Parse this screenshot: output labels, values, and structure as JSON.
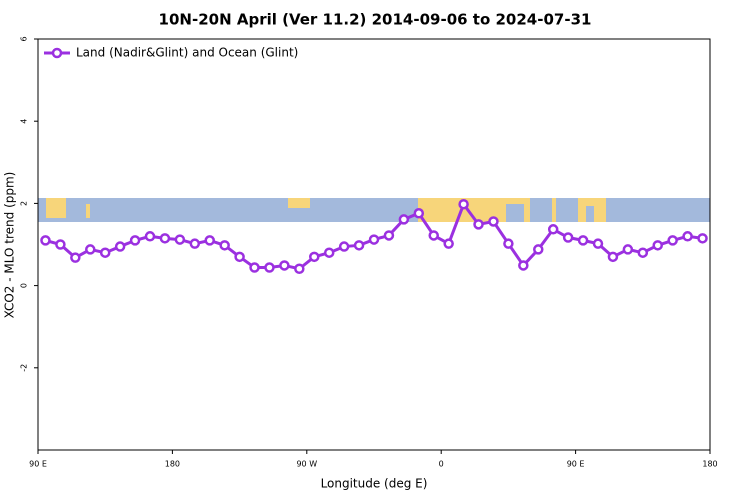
{
  "chart_data": {
    "type": "line",
    "title": "10N-20N April (Ver 11.2)   2014-09-06 to 2024-07-31",
    "x_label": "Longitude (deg E)",
    "y_label": "XCO2 - MLO trend (ppm)",
    "xlim": [
      90,
      540
    ],
    "xticks": [
      {
        "value": 90,
        "label": "90 E"
      },
      180,
      {
        "value": 270,
        "label": "90 W"
      },
      {
        "value": 360,
        "label": "0"
      },
      {
        "value": 450,
        "label": "90 E"
      },
      {
        "value": 540,
        "label": "180"
      }
    ],
    "ylim": [
      -4,
      6
    ],
    "yticks": [
      -2,
      0,
      2,
      4,
      6
    ],
    "legend": "top-left",
    "x": [
      95,
      105,
      115,
      125,
      135,
      145,
      155,
      165,
      175,
      185,
      195,
      205,
      215,
      225,
      235,
      245,
      255,
      265,
      275,
      285,
      295,
      305,
      315,
      325,
      335,
      345,
      355,
      365,
      375,
      385,
      395,
      405,
      415,
      425,
      435,
      445,
      455,
      465,
      475,
      485,
      495,
      505,
      515,
      525,
      535
    ],
    "series": [
      {
        "name": "Land (Nadir&Glint) and Ocean (Glint)",
        "color": "#9b30e0",
        "values": [
          1.1,
          1.0,
          0.68,
          0.88,
          0.8,
          0.95,
          1.1,
          1.2,
          1.15,
          1.12,
          1.02,
          1.1,
          0.98,
          0.7,
          0.44,
          0.44,
          0.49,
          0.41,
          0.7,
          0.8,
          0.95,
          0.98,
          1.12,
          1.22,
          1.61,
          1.76,
          1.22,
          1.02,
          1.98,
          1.49,
          1.56,
          1.02,
          0.49,
          0.88,
          1.37,
          1.17,
          1.1,
          1.02,
          0.7,
          0.88,
          0.8,
          0.98,
          1.1,
          1.2,
          1.15
        ]
      }
    ]
  }
}
